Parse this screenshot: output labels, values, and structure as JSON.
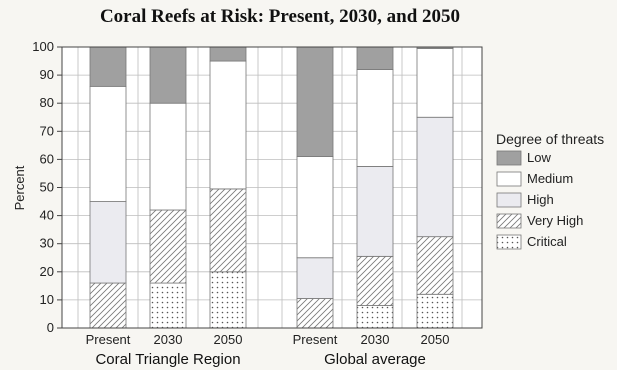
{
  "chart_data": {
    "type": "bar",
    "stacked": true,
    "title": "Coral Reefs at Risk: Present, 2030, and 2050",
    "xlabel": "",
    "ylabel": "Percent",
    "ylim": [
      0,
      100
    ],
    "yticks": [
      0,
      10,
      20,
      30,
      40,
      50,
      60,
      70,
      80,
      90,
      100
    ],
    "grid": true,
    "groups": [
      {
        "name": "Coral Triangle Region",
        "categories": [
          "Present",
          "2030",
          "2050"
        ]
      },
      {
        "name": "Global average",
        "categories": [
          "Present",
          "2030",
          "2050"
        ]
      }
    ],
    "categories": [
      "Present",
      "2030",
      "2050",
      "Present",
      "2030",
      "2050"
    ],
    "legend": {
      "title": "Degree of threats",
      "position": "right"
    },
    "series": [
      {
        "name": "Critical",
        "pattern": "dots",
        "values": [
          0,
          16,
          20,
          0,
          8,
          12
        ]
      },
      {
        "name": "Very High",
        "pattern": "hatch",
        "values": [
          16,
          26,
          29.5,
          10.5,
          17.5,
          20.5
        ]
      },
      {
        "name": "High",
        "pattern": "light",
        "values": [
          29,
          0,
          0,
          14.5,
          32,
          42.5
        ]
      },
      {
        "name": "Medium",
        "pattern": "white",
        "values": [
          41,
          38,
          45.5,
          36,
          34.5,
          24.5
        ]
      },
      {
        "name": "Low",
        "pattern": "dark",
        "values": [
          14,
          20,
          5,
          39,
          8,
          0.5
        ]
      }
    ],
    "colors": {
      "low": "#a0a0a0",
      "medium": "#ffffff",
      "high": "#ebebf0",
      "very_high": "#ffffff",
      "critical": "#ffffff"
    }
  }
}
